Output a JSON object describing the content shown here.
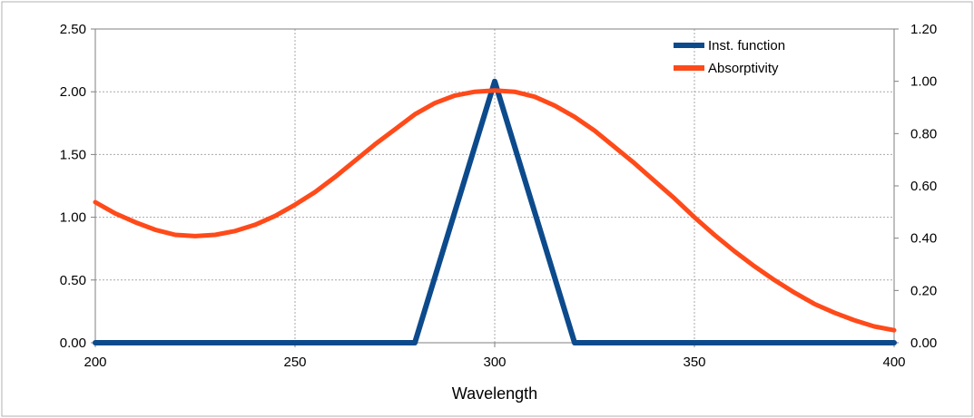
{
  "chart_data": {
    "type": "line",
    "title": "",
    "xlabel": "Wavelength",
    "ylabel_left": "",
    "ylabel_right": "",
    "xlim": [
      200,
      400
    ],
    "ylim_left": [
      0,
      2.5
    ],
    "ylim_right": [
      0,
      1.2
    ],
    "x_ticks": [
      "200",
      "250",
      "300",
      "350",
      "400"
    ],
    "y_left_ticks": [
      "0.00",
      "0.50",
      "1.00",
      "1.50",
      "2.00",
      "2.50"
    ],
    "y_right_ticks": [
      "0.00",
      "0.20",
      "0.40",
      "0.60",
      "0.80",
      "1.00",
      "1.20"
    ],
    "grid": true,
    "legend_position": "top-right",
    "series": [
      {
        "name": "Inst. function",
        "axis": "right",
        "color": "#0c4a8c",
        "x": [
          200,
          280,
          300,
          320,
          400
        ],
        "values": [
          0,
          0,
          1.0,
          0,
          0
        ]
      },
      {
        "name": "Absorptivity",
        "axis": "left",
        "color": "#ff4a1a",
        "x": [
          200,
          205,
          210,
          215,
          220,
          225,
          230,
          235,
          240,
          245,
          250,
          255,
          260,
          265,
          270,
          275,
          280,
          285,
          290,
          295,
          300,
          305,
          310,
          315,
          320,
          325,
          330,
          335,
          340,
          345,
          350,
          355,
          360,
          365,
          370,
          375,
          380,
          385,
          390,
          395,
          400
        ],
        "values": [
          1.12,
          1.03,
          0.96,
          0.9,
          0.86,
          0.85,
          0.86,
          0.89,
          0.94,
          1.01,
          1.1,
          1.2,
          1.32,
          1.45,
          1.58,
          1.7,
          1.82,
          1.91,
          1.97,
          2.0,
          2.01,
          2.0,
          1.96,
          1.89,
          1.8,
          1.69,
          1.56,
          1.43,
          1.29,
          1.15,
          1.0,
          0.86,
          0.73,
          0.61,
          0.5,
          0.4,
          0.31,
          0.24,
          0.18,
          0.13,
          0.1
        ]
      }
    ]
  }
}
